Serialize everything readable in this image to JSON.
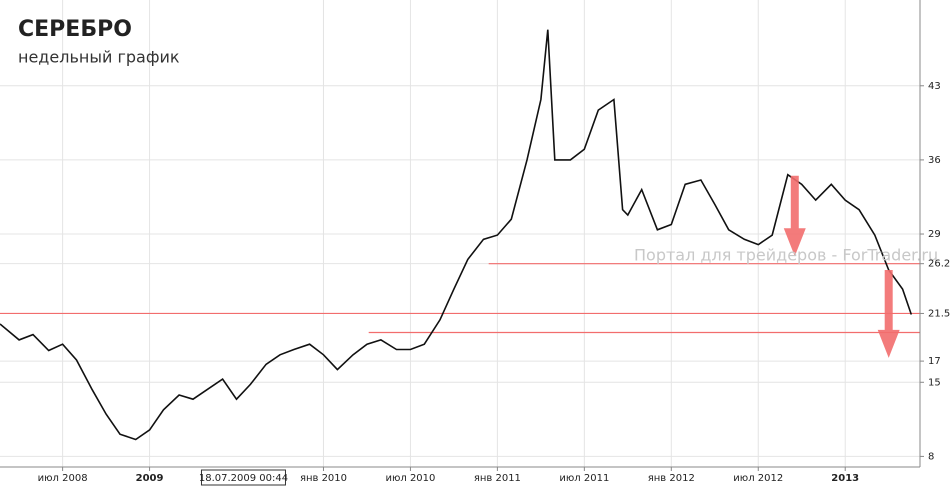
{
  "chart_data": {
    "type": "line",
    "title": "СЕРЕБРО",
    "subtitle": "недельный график",
    "watermark": "Портал для трейдеров - ForTrader.ru",
    "cursor_label": {
      "x": 2009.54,
      "label": "18.07.2009 00:44"
    },
    "xlim": [
      2008.14,
      2013.43
    ],
    "ylim": [
      7,
      51.1
    ],
    "xticks": [
      {
        "value": 2008.5,
        "label": "июл 2008"
      },
      2009,
      {
        "value": 2010,
        "label": "янв 2010"
      },
      {
        "value": 2010.5,
        "label": "июл 2010"
      },
      {
        "value": 2011,
        "label": "янв 2011"
      },
      {
        "value": 2011.5,
        "label": "июл 2011"
      },
      {
        "value": 2012,
        "label": "янв 2012"
      },
      {
        "value": 2012.5,
        "label": "июл 2012"
      },
      2013
    ],
    "yticks": [
      8,
      15,
      17,
      21.5,
      26.2,
      29,
      36,
      43
    ],
    "grid": true,
    "series": [
      {
        "color": "#111111",
        "x": [
          2008.14,
          2008.25,
          2008.33,
          2008.42,
          2008.5,
          2008.58,
          2008.67,
          2008.75,
          2008.83,
          2008.92,
          2009.0,
          2009.08,
          2009.17,
          2009.25,
          2009.33,
          2009.42,
          2009.5,
          2009.58,
          2009.67,
          2009.75,
          2009.83,
          2009.92,
          2010.0,
          2010.08,
          2010.17,
          2010.25,
          2010.33,
          2010.42,
          2010.5,
          2010.58,
          2010.67,
          2010.75,
          2010.83,
          2010.92,
          2011.0,
          2011.08,
          2011.17,
          2011.25,
          2011.29,
          2011.33,
          2011.42,
          2011.5,
          2011.58,
          2011.67,
          2011.72,
          2011.75,
          2011.83,
          2011.92,
          2012.0,
          2012.08,
          2012.17,
          2012.25,
          2012.33,
          2012.42,
          2012.5,
          2012.58,
          2012.67,
          2012.75,
          2012.83,
          2012.92,
          2013.0,
          2013.08,
          2013.17,
          2013.25,
          2013.33,
          2013.38
        ],
        "values": [
          20.5,
          19,
          19.5,
          18,
          18.6,
          17.1,
          14.3,
          12,
          10.1,
          9.6,
          10.5,
          12.4,
          13.8,
          13.4,
          14.3,
          15.3,
          13.4,
          14.8,
          16.7,
          17.6,
          18.1,
          18.6,
          17.6,
          16.2,
          17.6,
          18.6,
          19,
          18.1,
          18.1,
          18.6,
          20.9,
          23.8,
          26.6,
          28.5,
          28.9,
          30.4,
          36,
          41.7,
          48.3,
          36,
          36,
          37,
          40.7,
          41.7,
          31.3,
          30.8,
          33.2,
          29.4,
          29.9,
          33.7,
          34.1,
          31.8,
          29.4,
          28.5,
          28,
          28.9,
          34.6,
          33.7,
          32.2,
          33.7,
          32.2,
          31.3,
          28.9,
          25.6,
          23.8,
          21.4
        ]
      }
    ],
    "levels": [
      {
        "value": 26.2,
        "from": 2010.95,
        "color": "#f26d6d"
      },
      {
        "value": 21.5,
        "from": 2008.14,
        "color": "#f26d6d"
      },
      {
        "value": 19.7,
        "from": 2010.26,
        "color": "#f26d6d"
      }
    ],
    "arrows": [
      {
        "x": 2012.71,
        "from": 34.5,
        "to": 26.9,
        "color": "#f26d6d"
      },
      {
        "x": 2013.25,
        "from": 25.6,
        "to": 17.3,
        "color": "#f26d6d"
      }
    ]
  }
}
